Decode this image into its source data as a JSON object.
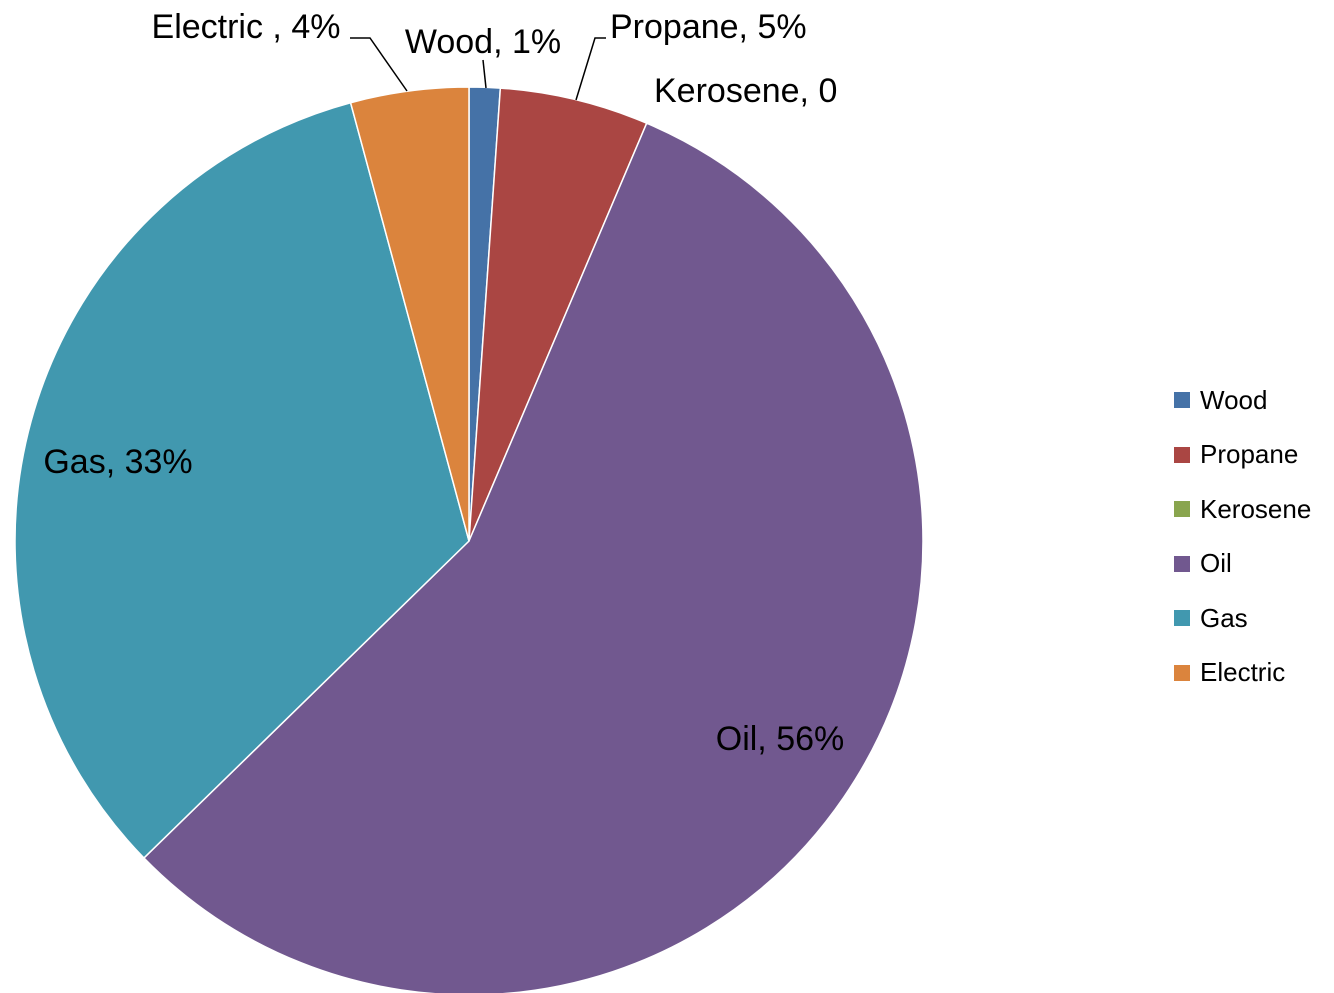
{
  "chart_data": {
    "type": "pie",
    "title": "",
    "start_angle_deg": 0,
    "direction": "clockwise",
    "slices": [
      {
        "label": "Wood",
        "value": 1.1,
        "data_label": "Wood, 1%",
        "color": "#4572A7"
      },
      {
        "label": "Propane",
        "value": 5.3,
        "data_label": "Propane, 5%",
        "color": "#AA4643"
      },
      {
        "label": "Kerosene",
        "value": 0,
        "data_label": "Kerosene, 0",
        "color": "#89A54E"
      },
      {
        "label": "Oil",
        "value": 56.3,
        "data_label": "Oil, 56%",
        "color": "#71588F"
      },
      {
        "label": "Gas",
        "value": 33.1,
        "data_label": "Gas, 33%",
        "color": "#4198AF"
      },
      {
        "label": "Electric",
        "value": 4.2,
        "data_label": "Electric , 4%",
        "color": "#DB843D"
      }
    ],
    "legend": {
      "position": "right",
      "entries": [
        "Wood",
        "Propane",
        "Kerosene",
        "Oil",
        "Gas",
        "Electric"
      ]
    }
  }
}
